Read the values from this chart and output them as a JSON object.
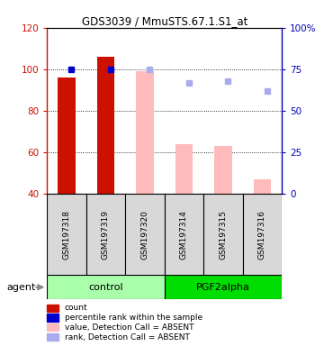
{
  "title": "GDS3039 / MmuSTS.67.1.S1_at",
  "samples": [
    "GSM197318",
    "GSM197319",
    "GSM197320",
    "GSM197314",
    "GSM197315",
    "GSM197316"
  ],
  "group_colors": {
    "control": "#aaffaa",
    "PGF2alpha": "#00dd00"
  },
  "ylim_left": [
    40,
    120
  ],
  "ylim_right": [
    0,
    100
  ],
  "yticks_left": [
    40,
    60,
    80,
    100,
    120
  ],
  "yticks_right": [
    0,
    25,
    50,
    75,
    100
  ],
  "ytick_labels_right": [
    "0",
    "25",
    "50",
    "75",
    "100%"
  ],
  "count_values": [
    96,
    106,
    null,
    null,
    null,
    null
  ],
  "count_color": "#cc1100",
  "percentile_values": [
    75,
    75,
    null,
    null,
    null,
    null
  ],
  "percentile_color": "#0000cc",
  "absent_value_values": [
    null,
    null,
    99,
    64,
    63,
    47
  ],
  "absent_value_color": "#ffbbbb",
  "absent_rank_values": [
    null,
    null,
    75,
    67,
    68,
    62
  ],
  "absent_rank_color": "#aaaaee",
  "bar_bottom": 40,
  "legend_items": [
    {
      "color": "#cc1100",
      "label": "count"
    },
    {
      "color": "#0000cc",
      "label": "percentile rank within the sample"
    },
    {
      "color": "#ffbbbb",
      "label": "value, Detection Call = ABSENT"
    },
    {
      "color": "#aaaaee",
      "label": "rank, Detection Call = ABSENT"
    }
  ],
  "left_axis_color": "#cc1100",
  "right_axis_color": "#0000bb",
  "group_label": "agent",
  "bg_color": "#d8d8d8",
  "plot_bg": "#ffffff"
}
